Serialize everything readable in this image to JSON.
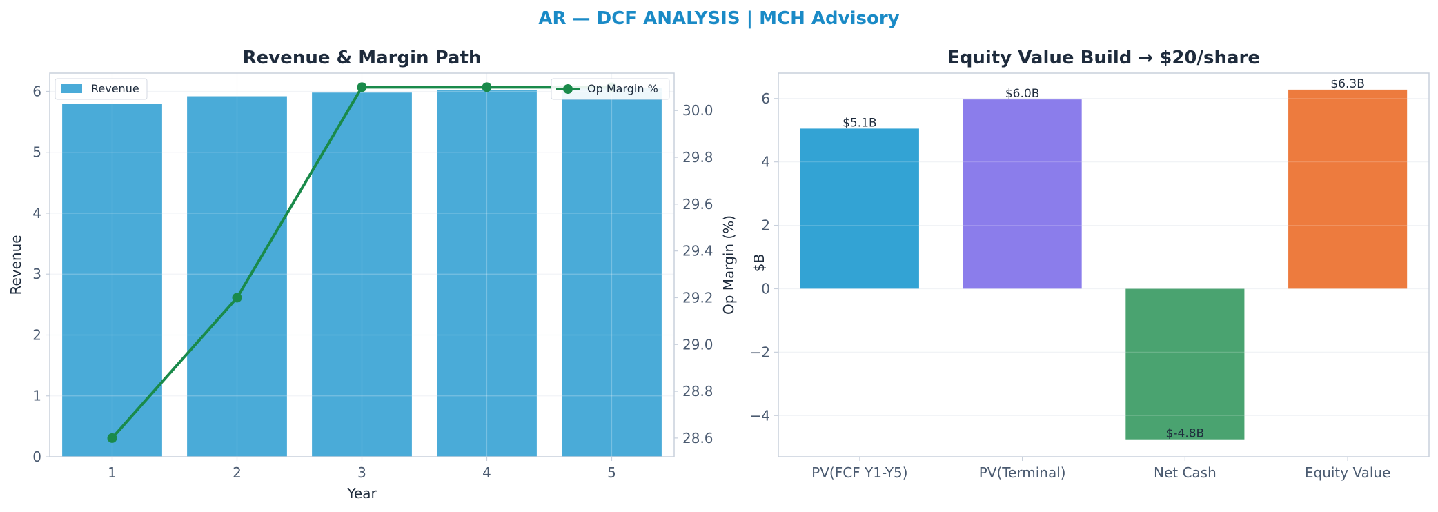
{
  "suptitle": "AR — DCF ANALYSIS | MCH Advisory",
  "chart_data": [
    {
      "type": "bar",
      "title": "Revenue & Margin Path",
      "xlabel": "Year",
      "ylabel": "Revenue",
      "y2label": "Op Margin (%)",
      "categories": [
        "1",
        "2",
        "3",
        "4",
        "5"
      ],
      "ylim": [
        0,
        6.3
      ],
      "yticks": [
        0,
        1,
        2,
        3,
        4,
        5,
        6
      ],
      "y2lim": [
        28.52,
        30.16
      ],
      "y2ticks": [
        28.6,
        28.8,
        29.0,
        29.2,
        29.4,
        29.6,
        29.8,
        30.0
      ],
      "grid": true,
      "series": [
        {
          "name": "Revenue",
          "type": "bar",
          "axis": "left",
          "color": "#4aabd8",
          "values": [
            5.8,
            5.92,
            5.98,
            6.02,
            6.06
          ],
          "legend_position": "upper-left"
        },
        {
          "name": "Op Margin %",
          "type": "line",
          "axis": "right",
          "color": "#1a8a4a",
          "values": [
            28.6,
            29.2,
            30.1,
            30.1,
            30.1
          ],
          "legend_position": "upper-right"
        }
      ]
    },
    {
      "type": "bar",
      "title": "Equity Value Build → $20/share",
      "xlabel": "",
      "ylabel": "$B",
      "categories": [
        "PV(FCF Y1-Y5)",
        "PV(Terminal)",
        "Net Cash",
        "Equity Value"
      ],
      "values": [
        5.05,
        5.97,
        -4.75,
        6.28
      ],
      "data_labels": [
        "$5.1B",
        "$6.0B",
        "$-4.8B",
        "$6.3B"
      ],
      "colors": [
        "#33a3d4",
        "#8b7deb",
        "#4aa370",
        "#ed7b3e"
      ],
      "ylim": [
        -5.3,
        6.8
      ],
      "yticks": [
        -4,
        -2,
        0,
        2,
        4,
        6
      ],
      "ytick_labels": [
        "−4",
        "−2",
        "0",
        "2",
        "4",
        "6"
      ],
      "grid": true
    }
  ]
}
